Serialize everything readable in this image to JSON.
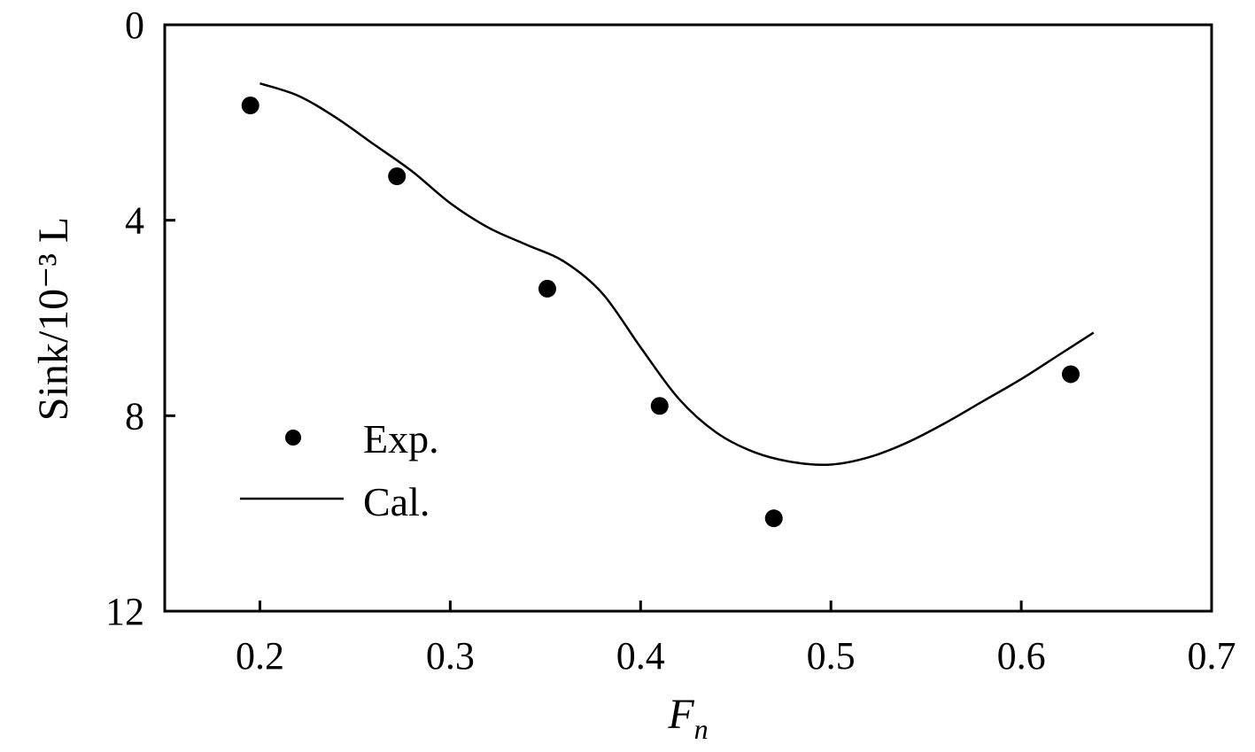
{
  "chart_data": {
    "type": "scatter",
    "title": "",
    "xlabel": "F",
    "xlabel_sub": "n",
    "ylabel": "Sink/10⁻³ L",
    "xlim": [
      0.15,
      0.7
    ],
    "ylim": [
      0,
      12
    ],
    "y_inverted": true,
    "x_ticks": [
      0.2,
      0.3,
      0.4,
      0.5,
      0.6,
      0.7
    ],
    "x_tick_labels": [
      "0.2",
      "0.3",
      "0.4",
      "0.5",
      "0.6",
      "0.7"
    ],
    "y_ticks": [
      0,
      4,
      8,
      12
    ],
    "y_tick_labels": [
      "0",
      "4",
      "8",
      "12"
    ],
    "grid": false,
    "legend_position": "lower-left",
    "series": [
      {
        "name": "Exp.",
        "kind": "scatter",
        "x": [
          0.195,
          0.272,
          0.351,
          0.41,
          0.47,
          0.626
        ],
        "y": [
          1.65,
          3.1,
          5.4,
          7.8,
          10.1,
          7.15
        ]
      },
      {
        "name": "Cal.",
        "kind": "line",
        "x": [
          0.2,
          0.22,
          0.24,
          0.26,
          0.28,
          0.3,
          0.32,
          0.34,
          0.36,
          0.38,
          0.4,
          0.42,
          0.44,
          0.46,
          0.48,
          0.5,
          0.52,
          0.54,
          0.56,
          0.58,
          0.6,
          0.62,
          0.638
        ],
        "y": [
          1.2,
          1.45,
          1.9,
          2.45,
          3.0,
          3.65,
          4.15,
          4.5,
          4.85,
          5.5,
          6.6,
          7.65,
          8.35,
          8.75,
          8.95,
          9.0,
          8.85,
          8.55,
          8.15,
          7.7,
          7.25,
          6.75,
          6.3
        ]
      }
    ]
  }
}
